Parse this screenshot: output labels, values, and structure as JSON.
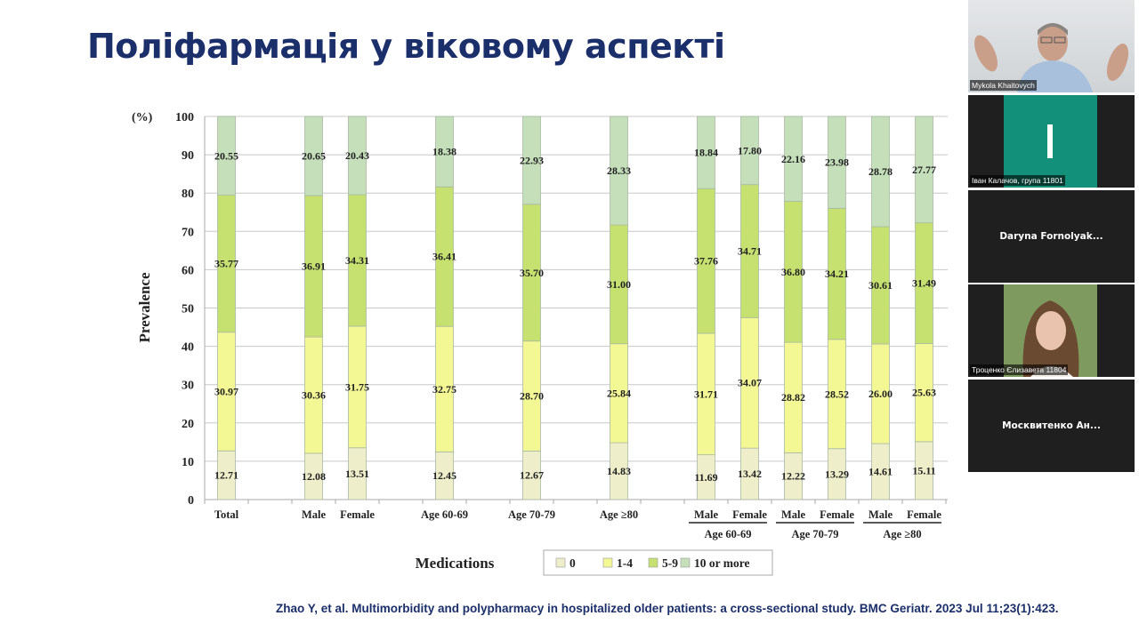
{
  "slide": {
    "title": "Поліфармація у віковому аспекті",
    "citation": "Zhao Y,  et al.  Multimorbidity and polypharmacy in hospitalized older patients: a cross-sectional study. BMC Geriatr. 2023 Jul 11;23(1):423."
  },
  "chart_data": {
    "type": "bar",
    "stacked": true,
    "unit_label": "(%)",
    "ylabel": "Prevalence",
    "xlabel": "Medications",
    "ylim": [
      0,
      100
    ],
    "yticks": [
      "0",
      "10",
      "20",
      "30",
      "40",
      "50",
      "60",
      "70",
      "80",
      "90",
      "100"
    ],
    "grid": true,
    "legend_position": "bottom-center",
    "categories": [
      "Total",
      "Male",
      "Female",
      "Age 60-69",
      "Age 70-79",
      "Age ≥80",
      "Male",
      "Female",
      "Male",
      "Female",
      "Male",
      "Female"
    ],
    "groups": [
      "Age 60-69",
      "Age 70-79",
      "Age ≥80"
    ],
    "series": [
      {
        "name": "0",
        "color": "#eeeecb",
        "values": [
          "12.71",
          "12.08",
          "13.51",
          "12.45",
          "12.67",
          "14.83",
          "11.69",
          "13.42",
          "12.22",
          "13.29",
          "14.61",
          "15.11"
        ]
      },
      {
        "name": "1-4",
        "color": "#f4f894",
        "values": [
          "30.97",
          "30.36",
          "31.75",
          "32.75",
          "28.70",
          "25.84",
          "31.71",
          "34.07",
          "28.82",
          "28.52",
          "26.00",
          "25.63"
        ]
      },
      {
        "name": "5-9",
        "color": "#c6e170",
        "values": [
          "35.77",
          "36.91",
          "34.31",
          "36.41",
          "35.70",
          "31.00",
          "37.76",
          "34.71",
          "36.80",
          "34.21",
          "30.61",
          "31.49"
        ]
      },
      {
        "name": "10 or more",
        "color": "#c4dfba",
        "values": [
          "20.55",
          "20.65",
          "20.43",
          "18.38",
          "22.93",
          "28.33",
          "18.84",
          "17.80",
          "22.16",
          "23.98",
          "28.78",
          "27.77"
        ]
      }
    ]
  },
  "participants": [
    {
      "name": "Mykola Khaitovych",
      "type": "video"
    },
    {
      "name": "Іван Калачов, група 11801",
      "type": "avatar",
      "initial": "I",
      "color": "#12907a"
    },
    {
      "name": "Daryna  Fornolyak...",
      "type": "name"
    },
    {
      "name": "Троценко Єлизавета  11804",
      "type": "video"
    },
    {
      "name": "Москвитенко  Ан...",
      "type": "name"
    }
  ]
}
